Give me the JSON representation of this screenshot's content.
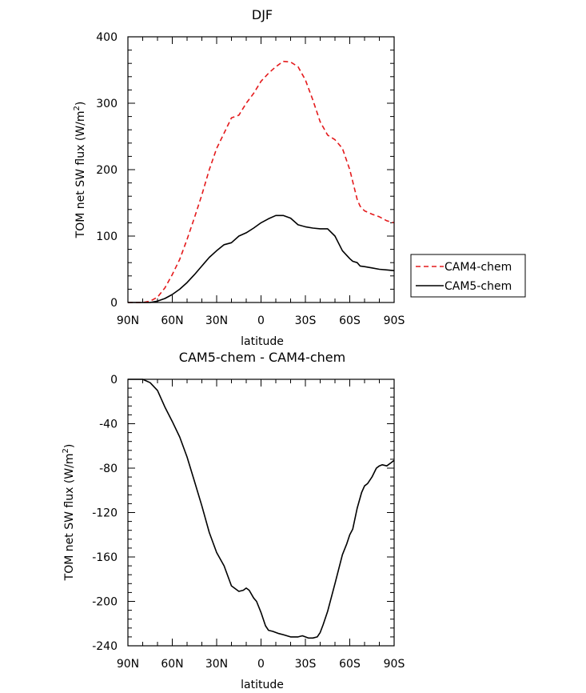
{
  "chart_data": [
    {
      "type": "line",
      "title": "DJF",
      "xlabel": "latitude",
      "ylabel": "TOM net SW flux (W/m",
      "ylabel_sup": "2",
      "ylabel_close": ")",
      "xlim": [
        90,
        -90
      ],
      "ylim": [
        0,
        400
      ],
      "xticks": [
        90,
        60,
        30,
        0,
        -30,
        -60,
        -90
      ],
      "xtick_labels": [
        "90N",
        "60N",
        "30N",
        "0",
        "30S",
        "60S",
        "90S"
      ],
      "yticks": [
        0,
        100,
        200,
        300,
        400
      ],
      "ytick_labels": [
        "0",
        "100",
        "200",
        "300",
        "400"
      ],
      "legend": "outside-right",
      "grid": false,
      "series": [
        {
          "name": "CAM4-chem",
          "color": "#e41a1c",
          "dash": true,
          "x": [
            90,
            85,
            80,
            75,
            70,
            65,
            60,
            55,
            50,
            45,
            40,
            35,
            30,
            25,
            20,
            15,
            10,
            5,
            0,
            -5,
            -10,
            -15,
            -20,
            -25,
            -30,
            -35,
            -40,
            -45,
            -50,
            -55,
            -60,
            -65,
            -67,
            -70,
            -75,
            -80,
            -85,
            -90
          ],
          "y": [
            0,
            0,
            0,
            2,
            8,
            22,
            42,
            65,
            95,
            128,
            162,
            200,
            232,
            255,
            278,
            282,
            300,
            315,
            333,
            345,
            355,
            363,
            362,
            355,
            335,
            305,
            272,
            252,
            245,
            232,
            200,
            155,
            145,
            138,
            133,
            129,
            123,
            120
          ]
        },
        {
          "name": "CAM5-chem",
          "color": "#000000",
          "dash": false,
          "x": [
            90,
            85,
            80,
            75,
            70,
            65,
            60,
            55,
            50,
            45,
            40,
            35,
            30,
            25,
            20,
            15,
            10,
            5,
            0,
            -5,
            -10,
            -15,
            -20,
            -25,
            -30,
            -35,
            -40,
            -45,
            -50,
            -55,
            -60,
            -62,
            -65,
            -67,
            -70,
            -75,
            -80,
            -85,
            -90
          ],
          "y": [
            0,
            0,
            0,
            0,
            2,
            6,
            12,
            20,
            30,
            42,
            55,
            68,
            78,
            87,
            90,
            100,
            105,
            112,
            120,
            126,
            131,
            131,
            127,
            117,
            114,
            112,
            111,
            111,
            100,
            78,
            66,
            62,
            60,
            55,
            54,
            52,
            50,
            49,
            48
          ]
        }
      ]
    },
    {
      "type": "line",
      "title": "CAM5-chem  -  CAM4-chem",
      "xlabel": "latitude",
      "ylabel": "TOM net SW flux (W/m",
      "ylabel_sup": "2",
      "ylabel_close": ")",
      "xlim": [
        90,
        -90
      ],
      "ylim": [
        -240,
        0
      ],
      "xticks": [
        90,
        60,
        30,
        0,
        -30,
        -60,
        -90
      ],
      "xtick_labels": [
        "90N",
        "60N",
        "30N",
        "0",
        "30S",
        "60S",
        "90S"
      ],
      "yticks": [
        0,
        -40,
        -80,
        -120,
        -160,
        -200,
        -240
      ],
      "ytick_labels": [
        "0",
        "-40",
        "-80",
        "-120",
        "-160",
        "-200",
        "-240"
      ],
      "grid": false,
      "series": [
        {
          "color": "#000000",
          "dash": false,
          "x": [
            90,
            85,
            80,
            75,
            70,
            65,
            60,
            55,
            50,
            45,
            40,
            35,
            30,
            25,
            20,
            15,
            12,
            10,
            8,
            5,
            3,
            0,
            -3,
            -5,
            -8,
            -10,
            -12,
            -15,
            -20,
            -25,
            -28,
            -30,
            -32,
            -35,
            -38,
            -40,
            -42,
            -45,
            -50,
            -55,
            -58,
            -60,
            -62,
            -65,
            -68,
            -70,
            -72,
            -75,
            -78,
            -80,
            -82,
            -85,
            -88,
            -90
          ],
          "y": [
            0,
            0,
            0,
            -3,
            -10,
            -25,
            -38,
            -52,
            -70,
            -92,
            -114,
            -138,
            -156,
            -168,
            -186,
            -191,
            -190,
            -188,
            -190,
            -197,
            -200,
            -210,
            -222,
            -226,
            -227,
            -228,
            -229,
            -230,
            -232,
            -232,
            -231,
            -232,
            -233,
            -233,
            -232,
            -228,
            -221,
            -209,
            -184,
            -158,
            -148,
            -140,
            -135,
            -116,
            -102,
            -96,
            -94,
            -88,
            -80,
            -78,
            -77,
            -78,
            -75,
            -73
          ]
        }
      ]
    }
  ]
}
